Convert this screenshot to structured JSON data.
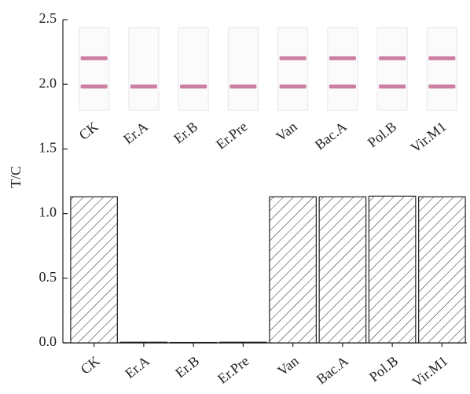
{
  "chart_data": {
    "type": "bar",
    "y_label": "T/C",
    "categories": [
      "CK",
      "Er.A",
      "Er.B",
      "Er.Pre",
      "Van",
      "Bac.A",
      "Pol.B",
      "Vir.M1"
    ],
    "values": [
      1.13,
      0.005,
      0.003,
      0.005,
      1.13,
      1.13,
      1.135,
      1.13
    ],
    "color": "#ffffff",
    "hatch": true,
    "ylim": [
      0,
      2.5
    ],
    "yticks": [
      {
        "value": 0,
        "label": "0.0"
      },
      0.5,
      {
        "value": 1,
        "label": "1.0"
      },
      1.5,
      {
        "value": 2,
        "label": "2.0"
      },
      2.5
    ],
    "inset": {
      "labels": [
        "CK",
        "Er.A",
        "Er.B",
        "Er.Pre",
        "Van",
        "Bac.A",
        "Pol.B",
        "Vir.M1"
      ],
      "test_line": [
        true,
        false,
        false,
        false,
        true,
        true,
        true,
        true
      ],
      "line_color": "#cc7fa3"
    }
  }
}
